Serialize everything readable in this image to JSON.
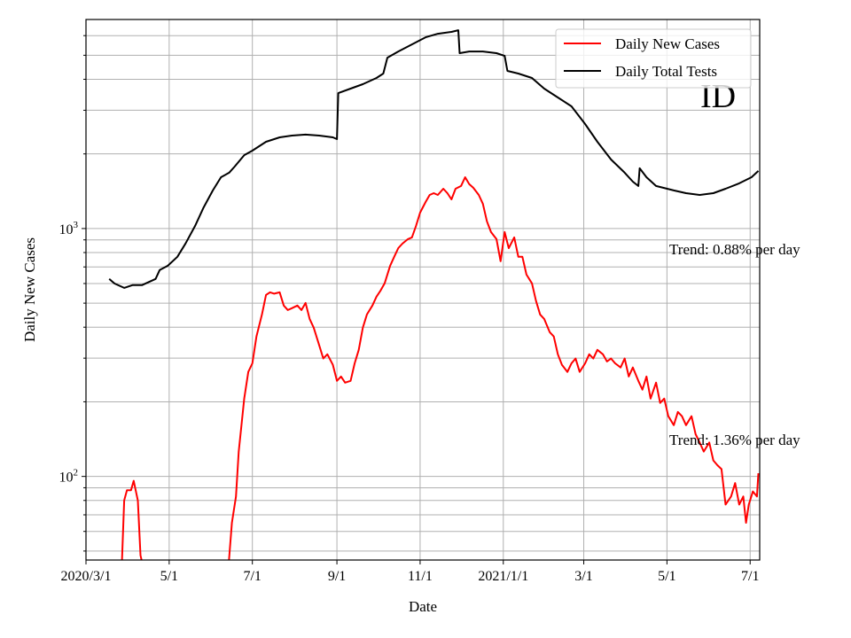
{
  "chart_data": {
    "type": "line",
    "title": "",
    "xlabel": "Date",
    "ylabel": "Daily New Cases",
    "yscale": "log",
    "xlim": [
      "2020-03-01",
      "2021-07-08"
    ],
    "ylim": [
      46,
      6970
    ],
    "grid": true,
    "legend_position": "top-right",
    "x_ticks": [
      {
        "date": "2020-03-01",
        "label": "2020/3/1"
      },
      {
        "date": "2020-05-01",
        "label": "5/1"
      },
      {
        "date": "2020-07-01",
        "label": "7/1"
      },
      {
        "date": "2020-09-01",
        "label": "9/1"
      },
      {
        "date": "2020-11-01",
        "label": "11/1"
      },
      {
        "date": "2021-01-01",
        "label": "2021/1/1"
      },
      {
        "date": "2021-03-01",
        "label": "3/1"
      },
      {
        "date": "2021-05-01",
        "label": "5/1"
      },
      {
        "date": "2021-07-01",
        "label": "7/1"
      }
    ],
    "y_ticks": [
      {
        "value": 100,
        "base": "10",
        "exp": "2"
      },
      {
        "value": 1000,
        "base": "10",
        "exp": "3"
      }
    ],
    "annotations": [
      {
        "text": "ID",
        "kind": "region-label"
      },
      {
        "text": "Trend: 0.88% per day",
        "near_value": 800
      },
      {
        "text": "Trend: 1.36% per day",
        "near_value": 140
      }
    ],
    "series": [
      {
        "name": "Daily New Cases",
        "color": "#ff0000",
        "segments": [
          [
            [
              "2020-03-27",
              40
            ],
            [
              "2020-03-29",
              80
            ],
            [
              "2020-03-31",
              88
            ],
            [
              "2020-04-03",
              88
            ],
            [
              "2020-04-05",
              96
            ],
            [
              "2020-04-08",
              80
            ],
            [
              "2020-04-10",
              48
            ],
            [
              "2020-04-12",
              43
            ]
          ],
          [
            [
              "2020-06-13",
              40
            ],
            [
              "2020-06-16",
              65
            ],
            [
              "2020-06-19",
              83
            ],
            [
              "2020-06-21",
              126
            ],
            [
              "2020-06-23",
              161
            ],
            [
              "2020-06-25",
              206
            ],
            [
              "2020-06-28",
              264
            ],
            [
              "2020-07-01",
              286
            ],
            [
              "2020-07-04",
              367
            ],
            [
              "2020-07-08",
              450
            ],
            [
              "2020-07-11",
              540
            ],
            [
              "2020-07-14",
              553
            ],
            [
              "2020-07-17",
              546
            ],
            [
              "2020-07-21",
              553
            ],
            [
              "2020-07-24",
              489
            ],
            [
              "2020-07-27",
              469
            ],
            [
              "2020-07-30",
              477
            ],
            [
              "2020-08-03",
              489
            ],
            [
              "2020-08-06",
              469
            ],
            [
              "2020-08-09",
              501
            ],
            [
              "2020-08-12",
              432
            ],
            [
              "2020-08-15",
              398
            ],
            [
              "2020-08-19",
              338
            ],
            [
              "2020-08-22",
              299
            ],
            [
              "2020-08-25",
              311
            ],
            [
              "2020-08-29",
              282
            ],
            [
              "2020-09-01",
              243
            ],
            [
              "2020-09-04",
              253
            ],
            [
              "2020-09-07",
              239
            ],
            [
              "2020-09-11",
              243
            ],
            [
              "2020-09-14",
              286
            ],
            [
              "2020-09-17",
              324
            ],
            [
              "2020-09-20",
              398
            ],
            [
              "2020-09-23",
              450
            ],
            [
              "2020-09-27",
              489
            ],
            [
              "2020-09-30",
              531
            ],
            [
              "2020-10-03",
              562
            ],
            [
              "2020-10-06",
              601
            ],
            [
              "2020-10-10",
              708
            ],
            [
              "2020-10-13",
              769
            ],
            [
              "2020-10-16",
              834
            ],
            [
              "2020-10-19",
              869
            ],
            [
              "2020-10-23",
              906
            ],
            [
              "2020-10-26",
              921
            ],
            [
              "2020-10-29",
              1025
            ],
            [
              "2020-11-01",
              1159
            ],
            [
              "2020-11-05",
              1279
            ],
            [
              "2020-11-08",
              1366
            ],
            [
              "2020-11-11",
              1389
            ],
            [
              "2020-11-14",
              1366
            ],
            [
              "2020-11-18",
              1447
            ],
            [
              "2020-11-21",
              1389
            ],
            [
              "2020-11-24",
              1311
            ],
            [
              "2020-11-27",
              1447
            ],
            [
              "2020-12-01",
              1484
            ],
            [
              "2020-12-04",
              1611
            ],
            [
              "2020-12-07",
              1510
            ],
            [
              "2020-12-10",
              1460
            ],
            [
              "2020-12-14",
              1366
            ],
            [
              "2020-12-17",
              1259
            ],
            [
              "2020-12-20",
              1069
            ],
            [
              "2020-12-23",
              968
            ],
            [
              "2020-12-27",
              906
            ],
            [
              "2020-12-30",
              738
            ],
            [
              "2021-01-02",
              968
            ],
            [
              "2021-01-05",
              834
            ],
            [
              "2021-01-09",
              921
            ],
            [
              "2021-01-12",
              769
            ],
            [
              "2021-01-15",
              769
            ],
            [
              "2021-01-18",
              652
            ],
            [
              "2021-01-22",
              601
            ],
            [
              "2021-01-25",
              510
            ],
            [
              "2021-01-28",
              450
            ],
            [
              "2021-01-31",
              432
            ],
            [
              "2021-02-04",
              382
            ],
            [
              "2021-02-07",
              367
            ],
            [
              "2021-02-10",
              311
            ],
            [
              "2021-02-13",
              282
            ],
            [
              "2021-02-17",
              264
            ],
            [
              "2021-02-20",
              286
            ],
            [
              "2021-02-23",
              299
            ],
            [
              "2021-02-26",
              264
            ],
            [
              "2021-03-02",
              286
            ],
            [
              "2021-03-05",
              311
            ],
            [
              "2021-03-08",
              299
            ],
            [
              "2021-03-11",
              324
            ],
            [
              "2021-03-15",
              311
            ],
            [
              "2021-03-18",
              291
            ],
            [
              "2021-03-21",
              299
            ],
            [
              "2021-03-24",
              286
            ],
            [
              "2021-03-28",
              275
            ],
            [
              "2021-03-31",
              299
            ],
            [
              "2021-04-03",
              253
            ],
            [
              "2021-04-06",
              275
            ],
            [
              "2021-04-10",
              243
            ],
            [
              "2021-04-13",
              224
            ],
            [
              "2021-04-16",
              253
            ],
            [
              "2021-04-19",
              206
            ],
            [
              "2021-04-23",
              239
            ],
            [
              "2021-04-26",
              198
            ],
            [
              "2021-04-29",
              206
            ],
            [
              "2021-05-02",
              175
            ],
            [
              "2021-05-06",
              161
            ],
            [
              "2021-05-09",
              182
            ],
            [
              "2021-05-12",
              175
            ],
            [
              "2021-05-15",
              161
            ],
            [
              "2021-05-19",
              175
            ],
            [
              "2021-05-22",
              148
            ],
            [
              "2021-05-25",
              137
            ],
            [
              "2021-05-28",
              126
            ],
            [
              "2021-06-01",
              137
            ],
            [
              "2021-06-04",
              116
            ],
            [
              "2021-06-07",
              111
            ],
            [
              "2021-06-10",
              107
            ],
            [
              "2021-06-13",
              77
            ],
            [
              "2021-06-17",
              83
            ],
            [
              "2021-06-20",
              94
            ],
            [
              "2021-06-23",
              77
            ],
            [
              "2021-06-26",
              83
            ],
            [
              "2021-06-28",
              65
            ],
            [
              "2021-06-30",
              77
            ],
            [
              "2021-07-03",
              87
            ],
            [
              "2021-07-06",
              83
            ],
            [
              "2021-07-07",
              103
            ]
          ]
        ]
      },
      {
        "name": "Daily Total Tests",
        "color": "#000000",
        "segments": [
          [
            [
              "2020-03-18",
              626
            ],
            [
              "2020-03-22",
              600
            ],
            [
              "2020-03-29",
              576
            ],
            [
              "2020-04-04",
              591
            ],
            [
              "2020-04-11",
              591
            ],
            [
              "2020-04-21",
              626
            ],
            [
              "2020-04-24",
              680
            ],
            [
              "2020-04-30",
              708
            ],
            [
              "2020-05-07",
              769
            ],
            [
              "2020-05-13",
              870
            ],
            [
              "2020-05-20",
              1025
            ],
            [
              "2020-05-26",
              1208
            ],
            [
              "2020-06-02",
              1425
            ],
            [
              "2020-06-08",
              1611
            ],
            [
              "2020-06-14",
              1679
            ],
            [
              "2020-06-18",
              1778
            ],
            [
              "2020-06-25",
              1977
            ],
            [
              "2020-07-01",
              2062
            ],
            [
              "2020-07-11",
              2239
            ],
            [
              "2020-07-21",
              2333
            ],
            [
              "2020-07-30",
              2371
            ],
            [
              "2020-08-09",
              2392
            ],
            [
              "2020-08-19",
              2371
            ],
            [
              "2020-08-29",
              2333
            ],
            [
              "2020-09-01",
              2294
            ],
            [
              "2020-09-02",
              3518
            ],
            [
              "2020-09-11",
              3667
            ],
            [
              "2020-09-20",
              3822
            ],
            [
              "2020-09-30",
              4048
            ],
            [
              "2020-10-05",
              4218
            ],
            [
              "2020-10-08",
              4889
            ],
            [
              "2020-10-16",
              5179
            ],
            [
              "2020-10-26",
              5531
            ],
            [
              "2020-11-05",
              5906
            ],
            [
              "2020-11-14",
              6106
            ],
            [
              "2020-11-24",
              6209
            ],
            [
              "2020-11-29",
              6310
            ],
            [
              "2020-11-30",
              5096
            ],
            [
              "2020-12-07",
              5179
            ],
            [
              "2020-12-17",
              5179
            ],
            [
              "2020-12-27",
              5096
            ],
            [
              "2021-01-02",
              4969
            ],
            [
              "2021-01-04",
              4325
            ],
            [
              "2021-01-12",
              4218
            ],
            [
              "2021-01-22",
              4048
            ],
            [
              "2021-01-31",
              3667
            ],
            [
              "2021-02-10",
              3379
            ],
            [
              "2021-02-20",
              3111
            ],
            [
              "2021-03-02",
              2638
            ],
            [
              "2021-03-11",
              2239
            ],
            [
              "2021-03-21",
              1899
            ],
            [
              "2021-03-31",
              1679
            ],
            [
              "2021-04-06",
              1546
            ],
            [
              "2021-04-10",
              1484
            ],
            [
              "2021-04-11",
              1750
            ],
            [
              "2021-04-16",
              1611
            ],
            [
              "2021-04-23",
              1484
            ],
            [
              "2021-05-06",
              1425
            ],
            [
              "2021-05-15",
              1389
            ],
            [
              "2021-05-25",
              1366
            ],
            [
              "2021-06-04",
              1389
            ],
            [
              "2021-06-13",
              1447
            ],
            [
              "2021-06-23",
              1521
            ],
            [
              "2021-07-02",
              1611
            ],
            [
              "2021-07-07",
              1708
            ]
          ]
        ]
      }
    ]
  }
}
